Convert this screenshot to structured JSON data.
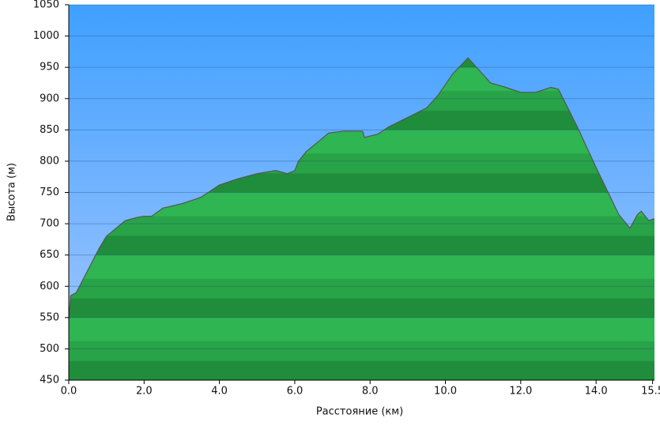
{
  "chart_data": {
    "type": "area",
    "x_label": "Расстояние   (км)",
    "y_label": "Высота (м)",
    "x": [
      0,
      0.05,
      0.2,
      0.5,
      0.8,
      1.0,
      1.3,
      1.5,
      1.8,
      2.0,
      2.2,
      2.5,
      3.0,
      3.5,
      4.0,
      4.5,
      5.0,
      5.5,
      5.8,
      6.0,
      6.1,
      6.3,
      6.6,
      6.9,
      7.3,
      7.8,
      7.85,
      8.2,
      8.5,
      9.0,
      9.5,
      9.8,
      10.2,
      10.6,
      10.9,
      11.2,
      11.6,
      12.0,
      12.4,
      12.8,
      13.0,
      13.5,
      14.0,
      14.4,
      14.6,
      14.9,
      15.1,
      15.2,
      15.4,
      15.55
    ],
    "values": [
      545,
      585,
      590,
      625,
      660,
      680,
      695,
      705,
      710,
      712,
      712,
      725,
      732,
      742,
      762,
      772,
      780,
      785,
      780,
      785,
      800,
      815,
      830,
      845,
      848,
      848,
      838,
      843,
      855,
      870,
      885,
      905,
      940,
      965,
      945,
      925,
      918,
      910,
      910,
      918,
      915,
      855,
      790,
      740,
      715,
      693,
      715,
      720,
      705,
      708
    ],
    "color": "#22aa44",
    "xlim": [
      0,
      15.55
    ],
    "ylim": [
      450,
      1050
    ],
    "xticks": [
      {
        "value": 0,
        "label": "0.0"
      },
      {
        "value": 2,
        "label": "2.0"
      },
      {
        "value": 4,
        "label": "4.0"
      },
      {
        "value": 6,
        "label": "6.0"
      },
      {
        "value": 8,
        "label": "8.0"
      },
      {
        "value": 10,
        "label": "10.0"
      },
      {
        "value": 12,
        "label": "12.0"
      },
      {
        "value": 14,
        "label": "14.0"
      },
      {
        "value": 15.5,
        "label": "15.5"
      }
    ],
    "yticks": [
      450,
      500,
      550,
      600,
      650,
      700,
      750,
      800,
      850,
      900,
      950,
      1000,
      1050
    ],
    "grid": true
  }
}
